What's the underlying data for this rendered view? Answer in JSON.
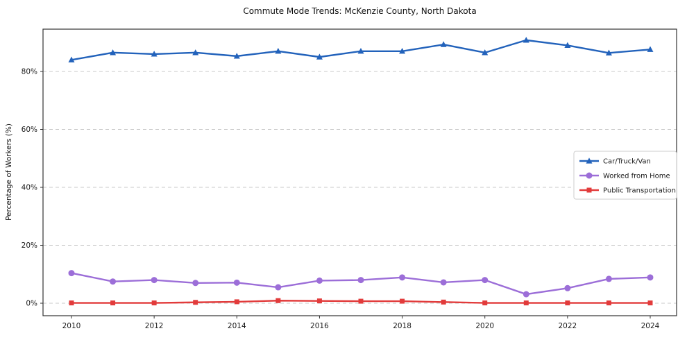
{
  "chart_data": {
    "type": "line",
    "title": "Commute Mode Trends: McKenzie County, North Dakota",
    "xlabel": "",
    "ylabel": "Percentage of Workers (%)",
    "grid": "horizontal-dashed",
    "legend_position": "middle-right",
    "ylim": [
      -4.5,
      94.5
    ],
    "x": [
      2010,
      2011,
      2012,
      2013,
      2014,
      2015,
      2016,
      2017,
      2018,
      2019,
      2020,
      2021,
      2022,
      2023,
      2024
    ],
    "xtick_values": [
      2010,
      2012,
      2014,
      2016,
      2018,
      2020,
      2022,
      2024
    ],
    "xtick_labels": [
      "2010",
      "2012",
      "2014",
      "2016",
      "2018",
      "2020",
      "2022",
      "2024"
    ],
    "ytick_values": [
      0,
      20,
      40,
      60,
      80
    ],
    "ytick_labels": [
      "0%",
      "20%",
      "40%",
      "60%",
      "80%"
    ],
    "series": [
      {
        "name": "Car/Truck/Van",
        "color": "#2262bb",
        "marker": "triangle",
        "values": [
          84.0,
          86.5,
          86.0,
          86.5,
          85.3,
          87.0,
          85.0,
          87.0,
          87.0,
          89.3,
          86.5,
          90.8,
          89.0,
          86.4,
          87.6
        ]
      },
      {
        "name": "Worked from Home",
        "color": "#9c6ed8",
        "marker": "circle",
        "values": [
          10.4,
          7.5,
          8.0,
          7.0,
          7.1,
          5.5,
          7.8,
          8.0,
          8.9,
          7.2,
          8.0,
          3.1,
          5.2,
          8.4,
          8.9
        ]
      },
      {
        "name": "Public Transportation",
        "color": "#e23b3b",
        "marker": "square",
        "values": [
          0.1,
          0.1,
          0.1,
          0.3,
          0.5,
          0.9,
          0.8,
          0.7,
          0.7,
          0.4,
          0.1,
          0.1,
          0.1,
          0.1,
          0.1
        ]
      }
    ]
  }
}
